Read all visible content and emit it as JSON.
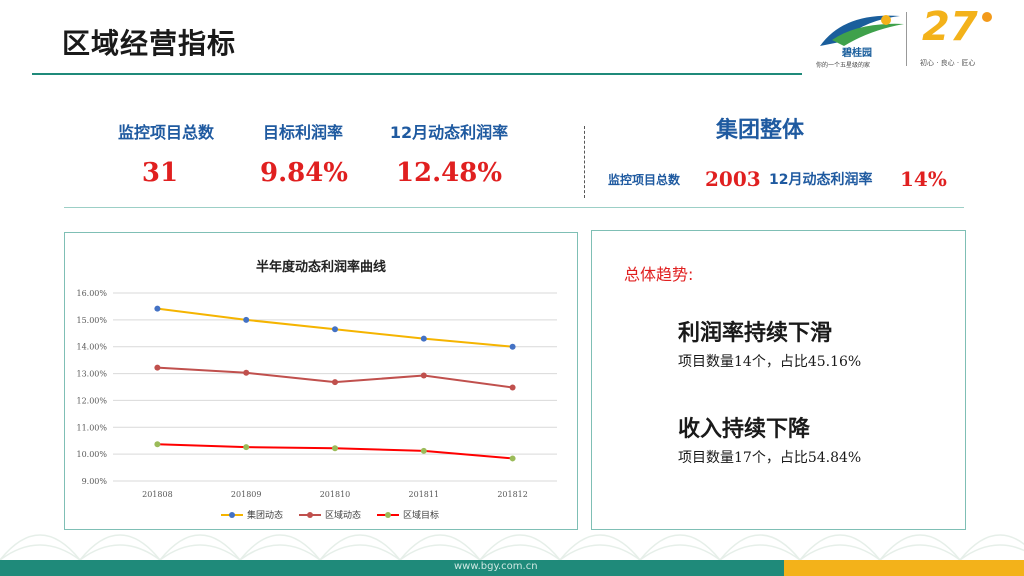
{
  "header": {
    "title": "区域经营指标",
    "logo": {
      "brand_name": "碧桂园",
      "tagline": "你的一个五星级的家",
      "anniversary_number": "27",
      "slogan": "初心 · 良心 · 匠心"
    }
  },
  "kpis": [
    {
      "label": "监控项目总数",
      "value": "31"
    },
    {
      "label": "目标利润率",
      "value": "9.84%"
    },
    {
      "label": "12月动态利润率",
      "value": "12.48%"
    }
  ],
  "group": {
    "title": "集团整体",
    "items": [
      {
        "label": "监控项目总数",
        "value": "2003"
      },
      {
        "label": "12月动态利润率",
        "value": "14%"
      }
    ]
  },
  "chart_data": {
    "type": "line",
    "title": "半年度动态利润率曲线",
    "categories": [
      "201808",
      "201809",
      "201810",
      "201811",
      "201812"
    ],
    "y_ticks": [
      "9.00%",
      "10.00%",
      "11.00%",
      "12.00%",
      "13.00%",
      "14.00%",
      "15.00%",
      "16.00%"
    ],
    "ylim": [
      9,
      16
    ],
    "grid": true,
    "legend_position": "bottom",
    "series": [
      {
        "name": "集团动态",
        "line_color": "#f5b400",
        "marker_color": "#4472c4",
        "values": [
          15.42,
          15.0,
          14.65,
          14.3,
          14.0
        ]
      },
      {
        "name": "区域动态",
        "line_color": "#c0504d",
        "marker_color": "#c0504d",
        "values": [
          13.22,
          13.03,
          12.68,
          12.93,
          12.48
        ]
      },
      {
        "name": "区域目标",
        "line_color": "#ff0000",
        "marker_color": "#9bbb59",
        "values": [
          10.37,
          10.26,
          10.22,
          10.12,
          9.84
        ]
      }
    ]
  },
  "trend": {
    "heading": "总体趋势:",
    "items": [
      {
        "title": "利润率持续下滑",
        "desc": "项目数量14个，占比45.16%"
      },
      {
        "title": "收入持续下降",
        "desc": "项目数量17个，占比54.84%"
      }
    ]
  },
  "footer": {
    "url": "www.bgy.com.cn"
  },
  "colors": {
    "accent_teal": "#1f8a7a",
    "accent_gold": "#f3b21a",
    "kpi_blue": "#1f5aa0",
    "value_red": "#e02020"
  }
}
